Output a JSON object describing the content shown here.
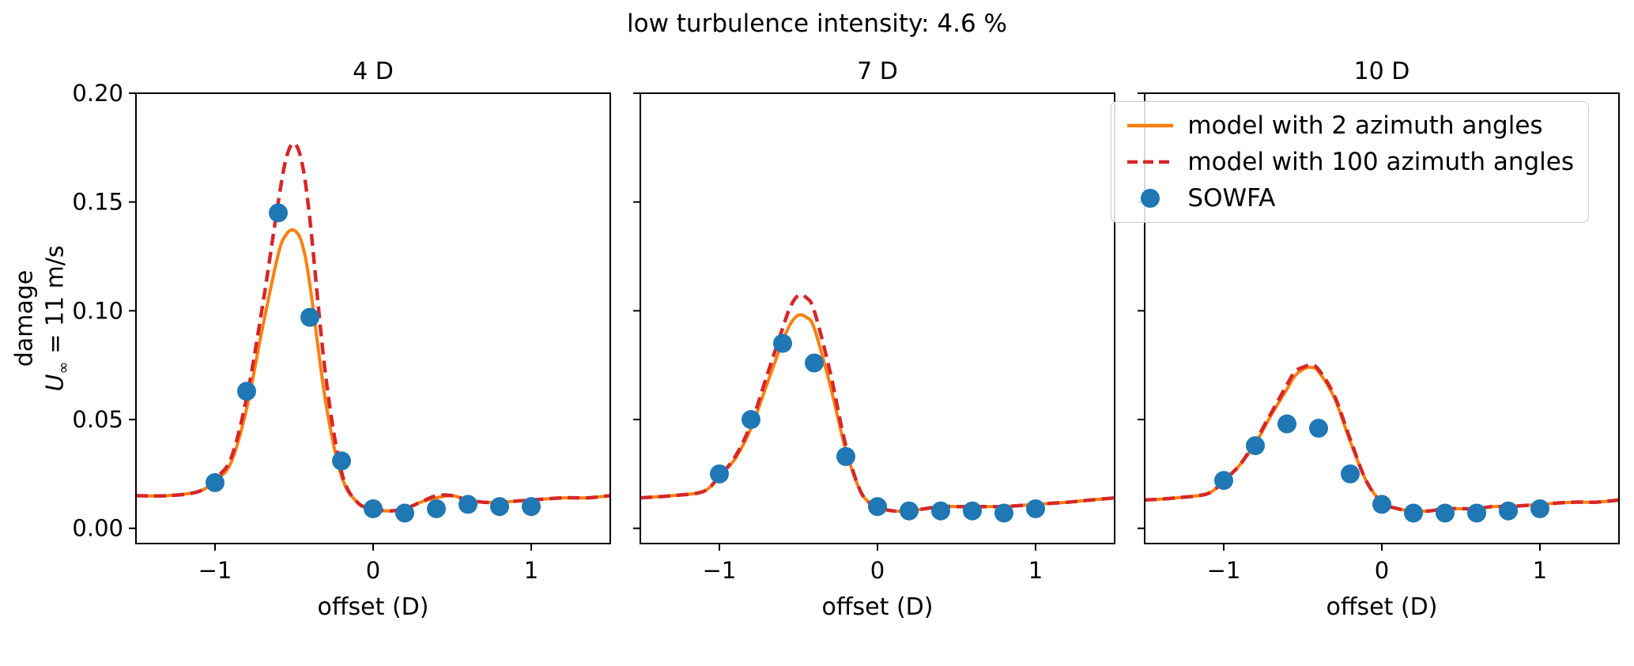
{
  "chart_data": {
    "type": "line",
    "suptitle": "low turbulence intensity: 4.6 %",
    "xlabel": "offset (D)",
    "ylabel_lines": {
      "line1": "damage",
      "u": "U",
      "sub": "∞",
      "rest": " = 11 m/s"
    },
    "xlim": [
      -1.5,
      1.5
    ],
    "ylim": [
      -0.007,
      0.2
    ],
    "xticks": [
      -1,
      0,
      1
    ],
    "xtick_labels": [
      "−1",
      "0",
      "1"
    ],
    "yticks": [
      0,
      0.05,
      0.1,
      0.15,
      0.2
    ],
    "ytick_labels": [
      "0.00",
      "0.05",
      "0.10",
      "0.15",
      "0.20"
    ],
    "grid": false,
    "legend_position": "upper right",
    "colors": {
      "model_2az": "#ff7f0e",
      "model_100az": "#d62728",
      "sowfa": "#1f77b4",
      "spine": "#000000"
    },
    "legend": [
      {
        "label": "model with 2 azimuth angles",
        "marker": "line-solid",
        "color_key": "model_2az"
      },
      {
        "label": "model with 100 azimuth angles",
        "marker": "line-dashed",
        "color_key": "model_100az"
      },
      {
        "label": "SOWFA",
        "marker": "dot",
        "color_key": "sowfa"
      }
    ],
    "curve_x": [
      -1.5,
      -1.3,
      -1.1,
      -1.0,
      -0.9,
      -0.8,
      -0.7,
      -0.6,
      -0.55,
      -0.5,
      -0.45,
      -0.4,
      -0.3,
      -0.2,
      -0.1,
      0,
      0.1,
      0.2,
      0.3,
      0.4,
      0.5,
      0.6,
      0.7,
      0.8,
      1.0,
      1.2,
      1.35,
      1.5
    ],
    "scatter_x": [
      -1.0,
      -0.8,
      -0.6,
      -0.4,
      -0.2,
      0,
      0.2,
      0.4,
      0.6,
      0.8,
      1.0
    ],
    "subplots": [
      {
        "title": "4 D",
        "model_2az_y": [
          0.015,
          0.015,
          0.017,
          0.022,
          0.03,
          0.055,
          0.092,
          0.126,
          0.135,
          0.137,
          0.131,
          0.112,
          0.058,
          0.024,
          0.012,
          0.009,
          0.008,
          0.009,
          0.012,
          0.014,
          0.015,
          0.013,
          0.012,
          0.012,
          0.013,
          0.014,
          0.014,
          0.015
        ],
        "model_100az_y": [
          0.015,
          0.015,
          0.017,
          0.023,
          0.032,
          0.06,
          0.102,
          0.15,
          0.17,
          0.177,
          0.168,
          0.142,
          0.07,
          0.026,
          0.012,
          0.009,
          0.008,
          0.009,
          0.012,
          0.015,
          0.015,
          0.013,
          0.012,
          0.012,
          0.013,
          0.014,
          0.014,
          0.015
        ],
        "sowfa_y": [
          0.021,
          0.063,
          0.145,
          0.097,
          0.031,
          0.009,
          0.007,
          0.009,
          0.011,
          0.01,
          0.01
        ]
      },
      {
        "title": "7 D",
        "model_2az_y": [
          0.014,
          0.015,
          0.017,
          0.024,
          0.032,
          0.046,
          0.066,
          0.086,
          0.094,
          0.098,
          0.097,
          0.092,
          0.066,
          0.036,
          0.016,
          0.01,
          0.008,
          0.008,
          0.009,
          0.01,
          0.01,
          0.01,
          0.01,
          0.01,
          0.011,
          0.012,
          0.013,
          0.014
        ],
        "model_100az_y": [
          0.014,
          0.015,
          0.017,
          0.024,
          0.033,
          0.048,
          0.07,
          0.092,
          0.102,
          0.107,
          0.106,
          0.1,
          0.072,
          0.038,
          0.016,
          0.01,
          0.008,
          0.008,
          0.009,
          0.01,
          0.01,
          0.01,
          0.01,
          0.01,
          0.011,
          0.012,
          0.013,
          0.014
        ],
        "sowfa_y": [
          0.025,
          0.05,
          0.085,
          0.076,
          0.033,
          0.01,
          0.008,
          0.008,
          0.008,
          0.007,
          0.009
        ]
      },
      {
        "title": "10 D",
        "model_2az_y": [
          0.013,
          0.014,
          0.016,
          0.022,
          0.029,
          0.039,
          0.052,
          0.064,
          0.07,
          0.073,
          0.074,
          0.072,
          0.06,
          0.04,
          0.022,
          0.012,
          0.009,
          0.008,
          0.008,
          0.009,
          0.009,
          0.009,
          0.01,
          0.01,
          0.011,
          0.012,
          0.012,
          0.013
        ],
        "model_100az_y": [
          0.013,
          0.014,
          0.016,
          0.022,
          0.029,
          0.04,
          0.053,
          0.066,
          0.072,
          0.074,
          0.075,
          0.073,
          0.061,
          0.041,
          0.022,
          0.012,
          0.009,
          0.008,
          0.008,
          0.009,
          0.009,
          0.009,
          0.01,
          0.01,
          0.011,
          0.012,
          0.012,
          0.013
        ],
        "sowfa_y": [
          0.022,
          0.038,
          0.048,
          0.046,
          0.025,
          0.011,
          0.007,
          0.007,
          0.007,
          0.008,
          0.009
        ]
      }
    ]
  }
}
